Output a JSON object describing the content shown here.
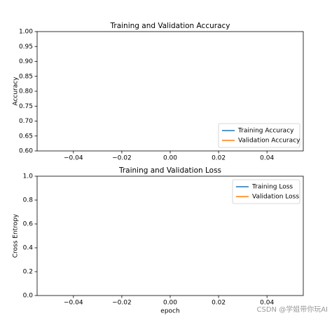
{
  "chart_data": [
    {
      "type": "line",
      "title": "Training and Validation Accuracy",
      "ylabel": "Accuracy",
      "x": [],
      "series": [
        {
          "name": "Training Accuracy",
          "color": "#1f77b4",
          "values": []
        },
        {
          "name": "Validation Accuracy",
          "color": "#ff7f0e",
          "values": []
        }
      ],
      "xlim": [
        -0.055,
        0.055
      ],
      "xticks": [
        {
          "value": -0.04,
          "label": "−0.04"
        },
        {
          "value": -0.02,
          "label": "−0.02"
        },
        {
          "value": 0,
          "label": "0.00"
        },
        0.02,
        0.04
      ],
      "ylim": [
        0.6,
        1.0
      ],
      "yticks": [
        {
          "value": 0.6,
          "label": "0.60"
        },
        0.65,
        {
          "value": 0.7,
          "label": "0.70"
        },
        0.75,
        {
          "value": 0.8,
          "label": "0.80"
        },
        0.85,
        {
          "value": 0.9,
          "label": "0.90"
        },
        0.95,
        {
          "value": 1.0,
          "label": "1.00"
        }
      ],
      "legend": "lower right"
    },
    {
      "type": "line",
      "title": "Training and Validation Loss",
      "ylabel": "Cross Entropy",
      "xlabel": "epoch",
      "x": [],
      "series": [
        {
          "name": "Training Loss",
          "color": "#1f77b4",
          "values": []
        },
        {
          "name": "Validation Loss",
          "color": "#ff7f0e",
          "values": []
        }
      ],
      "xlim": [
        -0.055,
        0.055
      ],
      "xticks": [
        {
          "value": -0.04,
          "label": "−0.04"
        },
        {
          "value": -0.02,
          "label": "−0.02"
        },
        {
          "value": 0,
          "label": "0.00"
        },
        0.02,
        0.04
      ],
      "ylim": [
        0,
        1.0
      ],
      "yticks": [
        {
          "value": 0,
          "label": "0.0"
        },
        0.2,
        0.4,
        0.6,
        0.8,
        {
          "value": 1.0,
          "label": "1.0"
        }
      ],
      "legend": "upper right"
    }
  ],
  "watermark": "CSDN @学姐带你玩AI"
}
